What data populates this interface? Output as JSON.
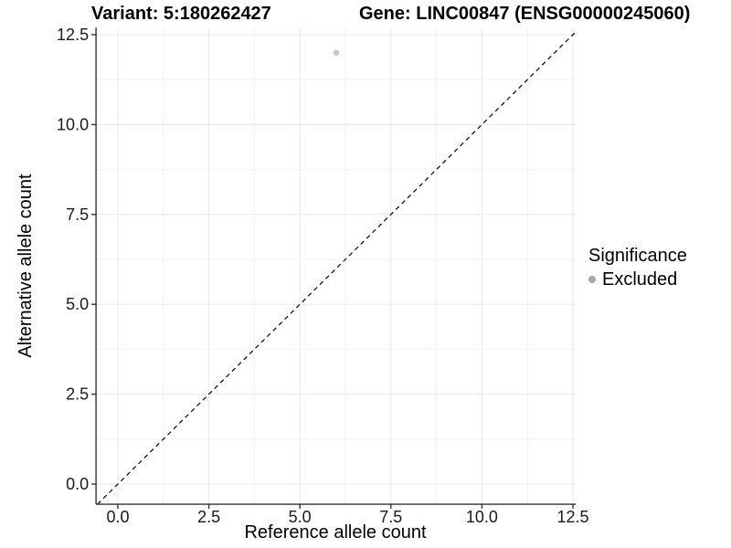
{
  "header": {
    "title_left": "Variant: 5:180262427",
    "title_right": "Gene: LINC00847 (ENSG00000245060)"
  },
  "chart_data": {
    "type": "scatter",
    "title_left": "Variant: 5:180262427",
    "title_right": "Gene: LINC00847 (ENSG00000245060)",
    "xlabel": "Reference allele count",
    "ylabel": "Alternative allele count",
    "xlim": [
      -0.6,
      12.58
    ],
    "ylim": [
      -0.56,
      12.7
    ],
    "x_tick_values": [
      0,
      2.5,
      5,
      7.5,
      10,
      12.5
    ],
    "x_tick_labels": [
      "0.0",
      "2.5",
      "5.0",
      "7.5",
      "10.0",
      "12.5"
    ],
    "y_tick_values": [
      0,
      2.5,
      5,
      7.5,
      10,
      12.5
    ],
    "y_tick_labels": [
      "0.0",
      "2.5",
      "5.0",
      "7.5",
      "10.0",
      "12.5"
    ],
    "x_minor_values": [
      1.25,
      3.75,
      6.25,
      8.75,
      11.25
    ],
    "y_minor_values": [
      1.25,
      3.75,
      6.25,
      8.75,
      11.25
    ],
    "grid": true,
    "points": [
      {
        "x": 6,
        "y": 12,
        "series": "Excluded"
      }
    ],
    "abline": {
      "slope": 1,
      "intercept": 0,
      "linetype": "dashed",
      "color": "#000000"
    },
    "legend": {
      "title": "Significance",
      "position": "right",
      "items": [
        {
          "label": "Excluded",
          "color": "#a8a8a8"
        }
      ]
    },
    "colors": {
      "point": "#c6c6c6",
      "axis_line": "#333333",
      "grid_major": "#e8e8e8",
      "grid_minor": "#f2f2f2",
      "tick_text": "#1a1a1a",
      "title_text": "#000000",
      "background": "#ffffff"
    }
  }
}
